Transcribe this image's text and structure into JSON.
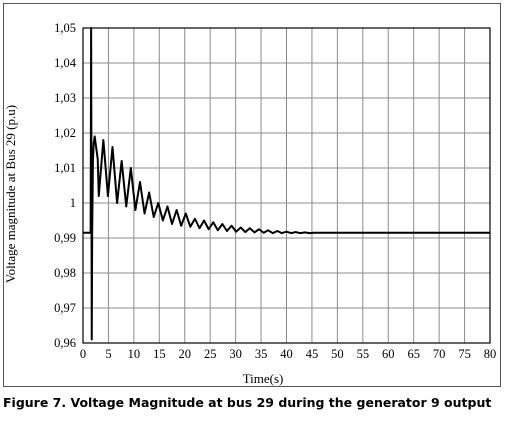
{
  "chart_data": {
    "type": "line",
    "title": "",
    "xlabel": "Time(s)",
    "ylabel": "Voltage magnitude at Bus 29 (p.u)",
    "xlim": [
      0,
      80
    ],
    "ylim": [
      0.96,
      1.05
    ],
    "grid": true,
    "x_ticks": [
      "0",
      "5",
      "10",
      "15",
      "20",
      "25",
      "30",
      "35",
      "40",
      "45",
      "50",
      "55",
      "60",
      "65",
      "70",
      "75",
      "80"
    ],
    "y_ticks": [
      "0,96",
      "0,97",
      "0,98",
      "0,99",
      "1",
      "1,01",
      "1,02",
      "1,03",
      "1,04",
      "1,05"
    ],
    "series": [
      {
        "color": "#000000",
        "points": [
          [
            0,
            0.9915
          ],
          [
            1.5,
            0.9915
          ],
          [
            1.6,
            1.05
          ],
          [
            1.72,
            0.961
          ],
          [
            1.8,
            0.991
          ],
          [
            1.95,
            1.012
          ],
          [
            2.1,
            1.017
          ],
          [
            2.3,
            1.019
          ],
          [
            2.9,
            1.0125
          ],
          [
            3.1,
            1.002
          ],
          [
            4.0,
            1.018
          ],
          [
            4.9,
            1.002
          ],
          [
            5.8,
            1.016
          ],
          [
            6.7,
            1.0
          ],
          [
            7.6,
            1.012
          ],
          [
            8.5,
            0.999
          ],
          [
            9.4,
            1.01
          ],
          [
            10.3,
            0.998
          ],
          [
            11.2,
            1.006
          ],
          [
            12.1,
            0.997
          ],
          [
            13.0,
            1.003
          ],
          [
            13.9,
            0.996
          ],
          [
            14.8,
            1.0
          ],
          [
            15.7,
            0.995
          ],
          [
            16.6,
            0.999
          ],
          [
            17.5,
            0.994
          ],
          [
            18.4,
            0.998
          ],
          [
            19.3,
            0.9935
          ],
          [
            20.2,
            0.997
          ],
          [
            21.1,
            0.9932
          ],
          [
            22.0,
            0.9955
          ],
          [
            22.9,
            0.9928
          ],
          [
            23.8,
            0.995
          ],
          [
            24.7,
            0.9925
          ],
          [
            25.6,
            0.9945
          ],
          [
            26.5,
            0.9922
          ],
          [
            27.4,
            0.994
          ],
          [
            28.3,
            0.992
          ],
          [
            29.2,
            0.9935
          ],
          [
            30.1,
            0.9918
          ],
          [
            31.0,
            0.993
          ],
          [
            31.9,
            0.9917
          ],
          [
            32.8,
            0.9928
          ],
          [
            33.7,
            0.9916
          ],
          [
            34.6,
            0.9925
          ],
          [
            35.5,
            0.9915
          ],
          [
            36.4,
            0.9922
          ],
          [
            37.3,
            0.9914
          ],
          [
            38.2,
            0.992
          ],
          [
            39.1,
            0.9914
          ],
          [
            40.0,
            0.9918
          ],
          [
            40.9,
            0.9914
          ],
          [
            41.8,
            0.9917
          ],
          [
            42.7,
            0.9914
          ],
          [
            43.6,
            0.9916
          ],
          [
            44.5,
            0.9914
          ],
          [
            45.4,
            0.9915
          ],
          [
            50,
            0.9915
          ],
          [
            55,
            0.9915
          ],
          [
            60,
            0.9915
          ],
          [
            65,
            0.9915
          ],
          [
            70,
            0.9915
          ],
          [
            75,
            0.9915
          ],
          [
            80,
            0.9915
          ]
        ]
      }
    ]
  },
  "caption": {
    "text": "Figure 7. Voltage Magnitude at bus 29 during the generator 9 output"
  }
}
